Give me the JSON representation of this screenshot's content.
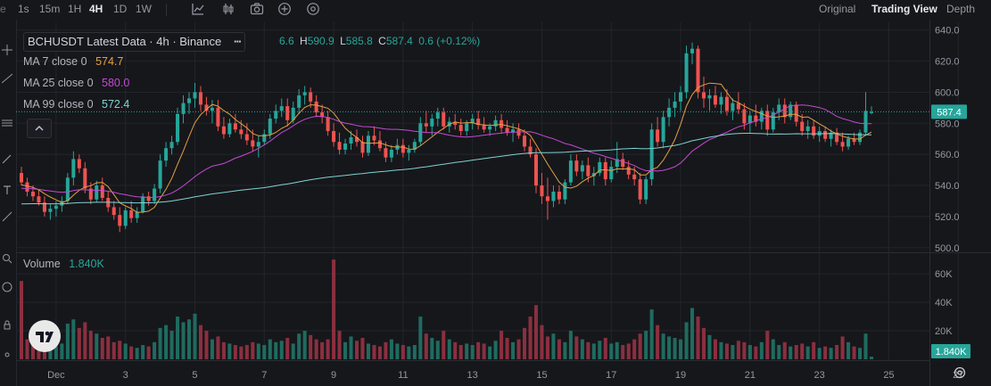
{
  "toolbar": {
    "intervals": [
      "1s",
      "15m",
      "1H",
      "4H",
      "1D",
      "1W"
    ],
    "active_interval": "4H",
    "views": [
      "Original",
      "Trading View",
      "Depth"
    ],
    "active_view": "Trading View",
    "icons": [
      "indicator-chart-icon",
      "candles-icon",
      "camera-icon",
      "plus-circle-icon",
      "settings-icon"
    ]
  },
  "legend": {
    "title": "BCHUSDT Latest Data · 4h · Binance",
    "ohlc": {
      "o_partial": "6.6",
      "h_label": "H",
      "h": "590.9",
      "l_label": "L",
      "l": "585.8",
      "c_label": "C",
      "c": "587.4",
      "change": "0.6 (+0.12%)"
    },
    "ma": [
      {
        "label": "MA 7 close 0",
        "value": "574.7",
        "color": "#e2a144"
      },
      {
        "label": "MA 25 close 0",
        "value": "580.0",
        "color": "#c44ad3"
      },
      {
        "label": "MA 99 close 0",
        "value": "572.4",
        "color": "#7fd3d3"
      }
    ],
    "volume": {
      "label": "Volume",
      "value": "1.840K"
    }
  },
  "colors": {
    "up": "#26a69a",
    "down": "#ef5350",
    "up_vol": "#1f6b5f",
    "down_vol": "#8b2f3f",
    "bg": "#16171b",
    "grid": "#23252c",
    "text": "#9598a1"
  },
  "chart_data": {
    "type": "candlestick",
    "x_ticks": [
      "Dec",
      "3",
      "5",
      "7",
      "9",
      "11",
      "13",
      "15",
      "17",
      "19",
      "21",
      "23",
      "25",
      "27"
    ],
    "y_ticks": [
      "640.0",
      "620.0",
      "600.0",
      "580.0",
      "560.0",
      "540.0",
      "520.0",
      "500.0"
    ],
    "ylim": [
      497,
      645
    ],
    "volume_ticks": [
      "60K",
      "40K",
      "20K"
    ],
    "volume_ylim": [
      0,
      72000
    ],
    "last_price": "587.4",
    "last_volume": "1.840K",
    "candles": [
      {
        "o": 548,
        "h": 552,
        "l": 540,
        "c": 542,
        "v": 55000
      },
      {
        "o": 542,
        "h": 545,
        "l": 533,
        "c": 536,
        "v": 14000
      },
      {
        "o": 536,
        "h": 540,
        "l": 530,
        "c": 533,
        "v": 10000
      },
      {
        "o": 533,
        "h": 537,
        "l": 527,
        "c": 529,
        "v": 9000
      },
      {
        "o": 529,
        "h": 533,
        "l": 520,
        "c": 523,
        "v": 12000
      },
      {
        "o": 523,
        "h": 528,
        "l": 518,
        "c": 525,
        "v": 8000
      },
      {
        "o": 525,
        "h": 530,
        "l": 520,
        "c": 527,
        "v": 9000
      },
      {
        "o": 527,
        "h": 533,
        "l": 523,
        "c": 530,
        "v": 11000
      },
      {
        "o": 530,
        "h": 548,
        "l": 528,
        "c": 545,
        "v": 25000
      },
      {
        "o": 545,
        "h": 562,
        "l": 540,
        "c": 557,
        "v": 28000
      },
      {
        "o": 557,
        "h": 560,
        "l": 548,
        "c": 551,
        "v": 22000
      },
      {
        "o": 551,
        "h": 555,
        "l": 535,
        "c": 538,
        "v": 26000
      },
      {
        "o": 538,
        "h": 542,
        "l": 528,
        "c": 531,
        "v": 20000
      },
      {
        "o": 531,
        "h": 543,
        "l": 529,
        "c": 540,
        "v": 18000
      },
      {
        "o": 540,
        "h": 545,
        "l": 530,
        "c": 532,
        "v": 15000
      },
      {
        "o": 532,
        "h": 536,
        "l": 523,
        "c": 526,
        "v": 16000
      },
      {
        "o": 526,
        "h": 530,
        "l": 518,
        "c": 521,
        "v": 12000
      },
      {
        "o": 521,
        "h": 526,
        "l": 510,
        "c": 514,
        "v": 13000
      },
      {
        "o": 514,
        "h": 526,
        "l": 512,
        "c": 524,
        "v": 11000
      },
      {
        "o": 524,
        "h": 530,
        "l": 516,
        "c": 519,
        "v": 9000
      },
      {
        "o": 519,
        "h": 526,
        "l": 516,
        "c": 523,
        "v": 8000
      },
      {
        "o": 523,
        "h": 535,
        "l": 522,
        "c": 533,
        "v": 10000
      },
      {
        "o": 533,
        "h": 536,
        "l": 527,
        "c": 530,
        "v": 9000
      },
      {
        "o": 530,
        "h": 541,
        "l": 528,
        "c": 538,
        "v": 12000
      },
      {
        "o": 538,
        "h": 560,
        "l": 535,
        "c": 556,
        "v": 22000
      },
      {
        "o": 556,
        "h": 568,
        "l": 552,
        "c": 564,
        "v": 24000
      },
      {
        "o": 564,
        "h": 572,
        "l": 560,
        "c": 568,
        "v": 20000
      },
      {
        "o": 568,
        "h": 590,
        "l": 566,
        "c": 586,
        "v": 30000
      },
      {
        "o": 586,
        "h": 598,
        "l": 580,
        "c": 593,
        "v": 26000
      },
      {
        "o": 593,
        "h": 600,
        "l": 586,
        "c": 596,
        "v": 28000
      },
      {
        "o": 596,
        "h": 606,
        "l": 590,
        "c": 600,
        "v": 32000
      },
      {
        "o": 600,
        "h": 604,
        "l": 588,
        "c": 592,
        "v": 24000
      },
      {
        "o": 592,
        "h": 597,
        "l": 585,
        "c": 588,
        "v": 20000
      },
      {
        "o": 588,
        "h": 595,
        "l": 580,
        "c": 590,
        "v": 14000
      },
      {
        "o": 590,
        "h": 595,
        "l": 575,
        "c": 578,
        "v": 16000
      },
      {
        "o": 578,
        "h": 584,
        "l": 570,
        "c": 573,
        "v": 12000
      },
      {
        "o": 573,
        "h": 583,
        "l": 571,
        "c": 580,
        "v": 11000
      },
      {
        "o": 580,
        "h": 586,
        "l": 574,
        "c": 576,
        "v": 10000
      },
      {
        "o": 576,
        "h": 582,
        "l": 570,
        "c": 573,
        "v": 9000
      },
      {
        "o": 573,
        "h": 580,
        "l": 566,
        "c": 569,
        "v": 10000
      },
      {
        "o": 569,
        "h": 576,
        "l": 562,
        "c": 565,
        "v": 12000
      },
      {
        "o": 565,
        "h": 572,
        "l": 558,
        "c": 568,
        "v": 11000
      },
      {
        "o": 568,
        "h": 576,
        "l": 566,
        "c": 573,
        "v": 10000
      },
      {
        "o": 573,
        "h": 586,
        "l": 570,
        "c": 583,
        "v": 14000
      },
      {
        "o": 583,
        "h": 592,
        "l": 580,
        "c": 588,
        "v": 12000
      },
      {
        "o": 588,
        "h": 596,
        "l": 584,
        "c": 591,
        "v": 13000
      },
      {
        "o": 591,
        "h": 596,
        "l": 578,
        "c": 582,
        "v": 15000
      },
      {
        "o": 582,
        "h": 594,
        "l": 580,
        "c": 590,
        "v": 11000
      },
      {
        "o": 590,
        "h": 602,
        "l": 586,
        "c": 598,
        "v": 18000
      },
      {
        "o": 598,
        "h": 604,
        "l": 592,
        "c": 600,
        "v": 20000
      },
      {
        "o": 600,
        "h": 603,
        "l": 590,
        "c": 594,
        "v": 17000
      },
      {
        "o": 594,
        "h": 598,
        "l": 584,
        "c": 587,
        "v": 14000
      },
      {
        "o": 587,
        "h": 592,
        "l": 580,
        "c": 584,
        "v": 12000
      },
      {
        "o": 584,
        "h": 588,
        "l": 572,
        "c": 575,
        "v": 14000
      },
      {
        "o": 575,
        "h": 580,
        "l": 565,
        "c": 568,
        "v": 70000
      },
      {
        "o": 568,
        "h": 574,
        "l": 560,
        "c": 563,
        "v": 20000
      },
      {
        "o": 563,
        "h": 570,
        "l": 560,
        "c": 567,
        "v": 12000
      },
      {
        "o": 567,
        "h": 575,
        "l": 563,
        "c": 571,
        "v": 16000
      },
      {
        "o": 571,
        "h": 576,
        "l": 565,
        "c": 568,
        "v": 13000
      },
      {
        "o": 568,
        "h": 572,
        "l": 558,
        "c": 561,
        "v": 15000
      },
      {
        "o": 561,
        "h": 575,
        "l": 559,
        "c": 572,
        "v": 11000
      },
      {
        "o": 572,
        "h": 578,
        "l": 566,
        "c": 569,
        "v": 10000
      },
      {
        "o": 569,
        "h": 575,
        "l": 562,
        "c": 564,
        "v": 9000
      },
      {
        "o": 564,
        "h": 568,
        "l": 555,
        "c": 558,
        "v": 12000
      },
      {
        "o": 558,
        "h": 566,
        "l": 555,
        "c": 563,
        "v": 14000
      },
      {
        "o": 563,
        "h": 570,
        "l": 560,
        "c": 566,
        "v": 11000
      },
      {
        "o": 566,
        "h": 570,
        "l": 558,
        "c": 561,
        "v": 10000
      },
      {
        "o": 561,
        "h": 566,
        "l": 556,
        "c": 563,
        "v": 9000
      },
      {
        "o": 563,
        "h": 570,
        "l": 561,
        "c": 568,
        "v": 10000
      },
      {
        "o": 568,
        "h": 584,
        "l": 566,
        "c": 580,
        "v": 30000
      },
      {
        "o": 580,
        "h": 588,
        "l": 574,
        "c": 578,
        "v": 18000
      },
      {
        "o": 578,
        "h": 586,
        "l": 572,
        "c": 583,
        "v": 15000
      },
      {
        "o": 583,
        "h": 590,
        "l": 578,
        "c": 587,
        "v": 13000
      },
      {
        "o": 587,
        "h": 590,
        "l": 576,
        "c": 578,
        "v": 20000
      },
      {
        "o": 578,
        "h": 584,
        "l": 574,
        "c": 581,
        "v": 14000
      },
      {
        "o": 581,
        "h": 586,
        "l": 576,
        "c": 579,
        "v": 12000
      },
      {
        "o": 579,
        "h": 583,
        "l": 572,
        "c": 575,
        "v": 10000
      },
      {
        "o": 575,
        "h": 582,
        "l": 572,
        "c": 580,
        "v": 11000
      },
      {
        "o": 580,
        "h": 586,
        "l": 576,
        "c": 583,
        "v": 10000
      },
      {
        "o": 583,
        "h": 588,
        "l": 576,
        "c": 579,
        "v": 12000
      },
      {
        "o": 579,
        "h": 584,
        "l": 574,
        "c": 576,
        "v": 11000
      },
      {
        "o": 576,
        "h": 580,
        "l": 572,
        "c": 578,
        "v": 9000
      },
      {
        "o": 578,
        "h": 585,
        "l": 575,
        "c": 582,
        "v": 13000
      },
      {
        "o": 582,
        "h": 586,
        "l": 574,
        "c": 577,
        "v": 20000
      },
      {
        "o": 577,
        "h": 582,
        "l": 572,
        "c": 574,
        "v": 15000
      },
      {
        "o": 574,
        "h": 580,
        "l": 568,
        "c": 576,
        "v": 12000
      },
      {
        "o": 576,
        "h": 580,
        "l": 570,
        "c": 572,
        "v": 14000
      },
      {
        "o": 572,
        "h": 576,
        "l": 562,
        "c": 565,
        "v": 22000
      },
      {
        "o": 565,
        "h": 570,
        "l": 558,
        "c": 560,
        "v": 30000
      },
      {
        "o": 560,
        "h": 564,
        "l": 535,
        "c": 540,
        "v": 38000
      },
      {
        "o": 540,
        "h": 548,
        "l": 528,
        "c": 533,
        "v": 24000
      },
      {
        "o": 533,
        "h": 545,
        "l": 518,
        "c": 530,
        "v": 16000
      },
      {
        "o": 530,
        "h": 540,
        "l": 526,
        "c": 536,
        "v": 18000
      },
      {
        "o": 536,
        "h": 540,
        "l": 528,
        "c": 531,
        "v": 14000
      },
      {
        "o": 531,
        "h": 544,
        "l": 528,
        "c": 542,
        "v": 12000
      },
      {
        "o": 542,
        "h": 560,
        "l": 540,
        "c": 556,
        "v": 20000
      },
      {
        "o": 556,
        "h": 560,
        "l": 546,
        "c": 549,
        "v": 16000
      },
      {
        "o": 549,
        "h": 556,
        "l": 544,
        "c": 553,
        "v": 14000
      },
      {
        "o": 553,
        "h": 558,
        "l": 542,
        "c": 546,
        "v": 12000
      },
      {
        "o": 546,
        "h": 552,
        "l": 540,
        "c": 548,
        "v": 11000
      },
      {
        "o": 548,
        "h": 558,
        "l": 546,
        "c": 555,
        "v": 13000
      },
      {
        "o": 555,
        "h": 558,
        "l": 540,
        "c": 544,
        "v": 15000
      },
      {
        "o": 544,
        "h": 556,
        "l": 542,
        "c": 552,
        "v": 11000
      },
      {
        "o": 552,
        "h": 568,
        "l": 548,
        "c": 557,
        "v": 12000
      },
      {
        "o": 557,
        "h": 561,
        "l": 550,
        "c": 552,
        "v": 10000
      },
      {
        "o": 552,
        "h": 556,
        "l": 544,
        "c": 547,
        "v": 11000
      },
      {
        "o": 547,
        "h": 552,
        "l": 540,
        "c": 544,
        "v": 14000
      },
      {
        "o": 544,
        "h": 548,
        "l": 528,
        "c": 531,
        "v": 18000
      },
      {
        "o": 531,
        "h": 546,
        "l": 528,
        "c": 544,
        "v": 20000
      },
      {
        "o": 544,
        "h": 580,
        "l": 540,
        "c": 576,
        "v": 35000
      },
      {
        "o": 576,
        "h": 584,
        "l": 565,
        "c": 568,
        "v": 24000
      },
      {
        "o": 568,
        "h": 588,
        "l": 564,
        "c": 584,
        "v": 18000
      },
      {
        "o": 584,
        "h": 596,
        "l": 578,
        "c": 590,
        "v": 16000
      },
      {
        "o": 590,
        "h": 600,
        "l": 584,
        "c": 594,
        "v": 15000
      },
      {
        "o": 594,
        "h": 604,
        "l": 588,
        "c": 600,
        "v": 14000
      },
      {
        "o": 600,
        "h": 630,
        "l": 596,
        "c": 625,
        "v": 26000
      },
      {
        "o": 625,
        "h": 632,
        "l": 618,
        "c": 628,
        "v": 36000
      },
      {
        "o": 628,
        "h": 630,
        "l": 596,
        "c": 600,
        "v": 30000
      },
      {
        "o": 600,
        "h": 610,
        "l": 590,
        "c": 596,
        "v": 22000
      },
      {
        "o": 596,
        "h": 602,
        "l": 588,
        "c": 598,
        "v": 17000
      },
      {
        "o": 598,
        "h": 604,
        "l": 590,
        "c": 592,
        "v": 14000
      },
      {
        "o": 592,
        "h": 600,
        "l": 586,
        "c": 597,
        "v": 12000
      },
      {
        "o": 597,
        "h": 602,
        "l": 585,
        "c": 588,
        "v": 11000
      },
      {
        "o": 588,
        "h": 596,
        "l": 582,
        "c": 593,
        "v": 10000
      },
      {
        "o": 593,
        "h": 600,
        "l": 586,
        "c": 589,
        "v": 13000
      },
      {
        "o": 589,
        "h": 593,
        "l": 576,
        "c": 580,
        "v": 12000
      },
      {
        "o": 580,
        "h": 588,
        "l": 574,
        "c": 585,
        "v": 10000
      },
      {
        "o": 585,
        "h": 592,
        "l": 578,
        "c": 581,
        "v": 9000
      },
      {
        "o": 581,
        "h": 590,
        "l": 576,
        "c": 588,
        "v": 12000
      },
      {
        "o": 588,
        "h": 592,
        "l": 572,
        "c": 576,
        "v": 20000
      },
      {
        "o": 576,
        "h": 590,
        "l": 574,
        "c": 587,
        "v": 14000
      },
      {
        "o": 587,
        "h": 596,
        "l": 582,
        "c": 592,
        "v": 10000
      },
      {
        "o": 592,
        "h": 596,
        "l": 580,
        "c": 584,
        "v": 12000
      },
      {
        "o": 584,
        "h": 594,
        "l": 582,
        "c": 592,
        "v": 9000
      },
      {
        "o": 592,
        "h": 594,
        "l": 578,
        "c": 581,
        "v": 10000
      },
      {
        "o": 581,
        "h": 586,
        "l": 572,
        "c": 575,
        "v": 11000
      },
      {
        "o": 575,
        "h": 582,
        "l": 570,
        "c": 578,
        "v": 9000
      },
      {
        "o": 578,
        "h": 582,
        "l": 570,
        "c": 572,
        "v": 12000
      },
      {
        "o": 572,
        "h": 578,
        "l": 568,
        "c": 575,
        "v": 8000
      },
      {
        "o": 575,
        "h": 578,
        "l": 568,
        "c": 570,
        "v": 9000
      },
      {
        "o": 570,
        "h": 576,
        "l": 565,
        "c": 574,
        "v": 8000
      },
      {
        "o": 574,
        "h": 577,
        "l": 566,
        "c": 568,
        "v": 10000
      },
      {
        "o": 568,
        "h": 574,
        "l": 562,
        "c": 565,
        "v": 16000
      },
      {
        "o": 565,
        "h": 572,
        "l": 563,
        "c": 570,
        "v": 12000
      },
      {
        "o": 570,
        "h": 574,
        "l": 566,
        "c": 568,
        "v": 9000
      },
      {
        "o": 568,
        "h": 576,
        "l": 566,
        "c": 574,
        "v": 8000
      },
      {
        "o": 574,
        "h": 600,
        "l": 572,
        "c": 588,
        "v": 18000
      },
      {
        "o": 586.6,
        "h": 590.9,
        "l": 585.8,
        "c": 587.4,
        "v": 1840
      }
    ]
  }
}
